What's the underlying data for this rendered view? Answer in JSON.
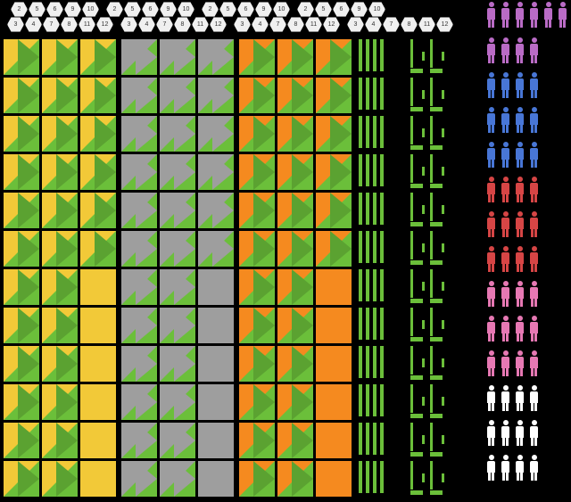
{
  "colors": {
    "green": "#6bbf3a",
    "yellow": "#f2c938",
    "grey": "#9e9e9e",
    "orange": "#f58a1f",
    "black": "#000000",
    "purple": "#b96bc5",
    "blue": "#4876d6",
    "red": "#d64545",
    "pink": "#e678b3",
    "white": "#ffffff",
    "hex_bg": "#f0f0f0"
  },
  "hex_header": {
    "groups": 4,
    "row1": [
      "2",
      "5",
      "6",
      "9",
      "10"
    ],
    "row2": [
      "3",
      "4",
      "7",
      "8",
      "11",
      "12"
    ]
  },
  "triangle_blocks": {
    "block_bg": {
      "A": "green",
      "B": "green",
      "C": "green"
    },
    "corner_color": {
      "A": "yellow",
      "B": "grey",
      "C": "orange"
    },
    "arrow_color": {
      "A": "green",
      "B": "grey",
      "C": "green"
    },
    "rows": [
      {
        "cells": [
          [
            "t",
            "t",
            "t"
          ],
          [
            "t",
            "t",
            "t"
          ],
          [
            "t",
            "t",
            "t"
          ]
        ]
      },
      {
        "cells": [
          [
            "t",
            "t",
            "t"
          ],
          [
            "t",
            "t",
            "t"
          ],
          [
            "t",
            "t",
            "t"
          ]
        ]
      },
      {
        "cells": [
          [
            "t",
            "t",
            "t"
          ],
          [
            "t",
            "t",
            "t"
          ],
          [
            "t",
            "t",
            "t"
          ]
        ]
      },
      {
        "cells": [
          [
            "t",
            "t",
            "t"
          ],
          [
            "t",
            "t",
            "t"
          ],
          [
            "t",
            "t",
            "t"
          ]
        ]
      },
      {
        "cells": [
          [
            "t",
            "t",
            "t"
          ],
          [
            "t",
            "t",
            "t"
          ],
          [
            "t",
            "t",
            "t"
          ]
        ]
      },
      {
        "cells": [
          [
            "t",
            "t",
            "t"
          ],
          [
            "t",
            "t",
            "t"
          ],
          [
            "t",
            "t",
            "t"
          ]
        ]
      },
      {
        "cells": [
          [
            "t",
            "t",
            "s"
          ],
          [
            "t",
            "t",
            "q"
          ],
          [
            "t",
            "t",
            "o"
          ]
        ]
      },
      {
        "cells": [
          [
            "t",
            "t",
            "s"
          ],
          [
            "t",
            "t",
            "q"
          ],
          [
            "t",
            "t",
            "o"
          ]
        ]
      },
      {
        "cells": [
          [
            "t",
            "t",
            "s"
          ],
          [
            "t",
            "t",
            "q"
          ],
          [
            "t",
            "t",
            "o"
          ]
        ]
      },
      {
        "cells": [
          [
            "t",
            "t",
            "s"
          ],
          [
            "t",
            "t",
            "q"
          ],
          [
            "t",
            "t",
            "o"
          ]
        ]
      },
      {
        "cells": [
          [
            "t",
            "t",
            "s"
          ],
          [
            "t",
            "t",
            "q"
          ],
          [
            "t",
            "t",
            "o"
          ]
        ]
      },
      {
        "cells": [
          [
            "t",
            "t",
            "s"
          ],
          [
            "t",
            "t",
            "q"
          ],
          [
            "t",
            "t",
            "o"
          ]
        ]
      }
    ]
  },
  "bar_column": {
    "rows": 12,
    "bars_per_row": 4,
    "color": "green"
  },
  "glyph_column": {
    "rows": 12,
    "glyphs_per_row": 2,
    "color": "green"
  },
  "people_column": {
    "rows": [
      {
        "color": "purple"
      },
      {
        "color": "purple"
      },
      {
        "color": "blue"
      },
      {
        "color": "blue"
      },
      {
        "color": "blue"
      },
      {
        "color": "red"
      },
      {
        "color": "red"
      },
      {
        "color": "red"
      },
      {
        "color": "pink"
      },
      {
        "color": "pink"
      },
      {
        "color": "pink"
      },
      {
        "color": "white"
      },
      {
        "color": "white"
      },
      {
        "color": "white"
      }
    ],
    "per_row": 4,
    "top_row_per": 6
  }
}
